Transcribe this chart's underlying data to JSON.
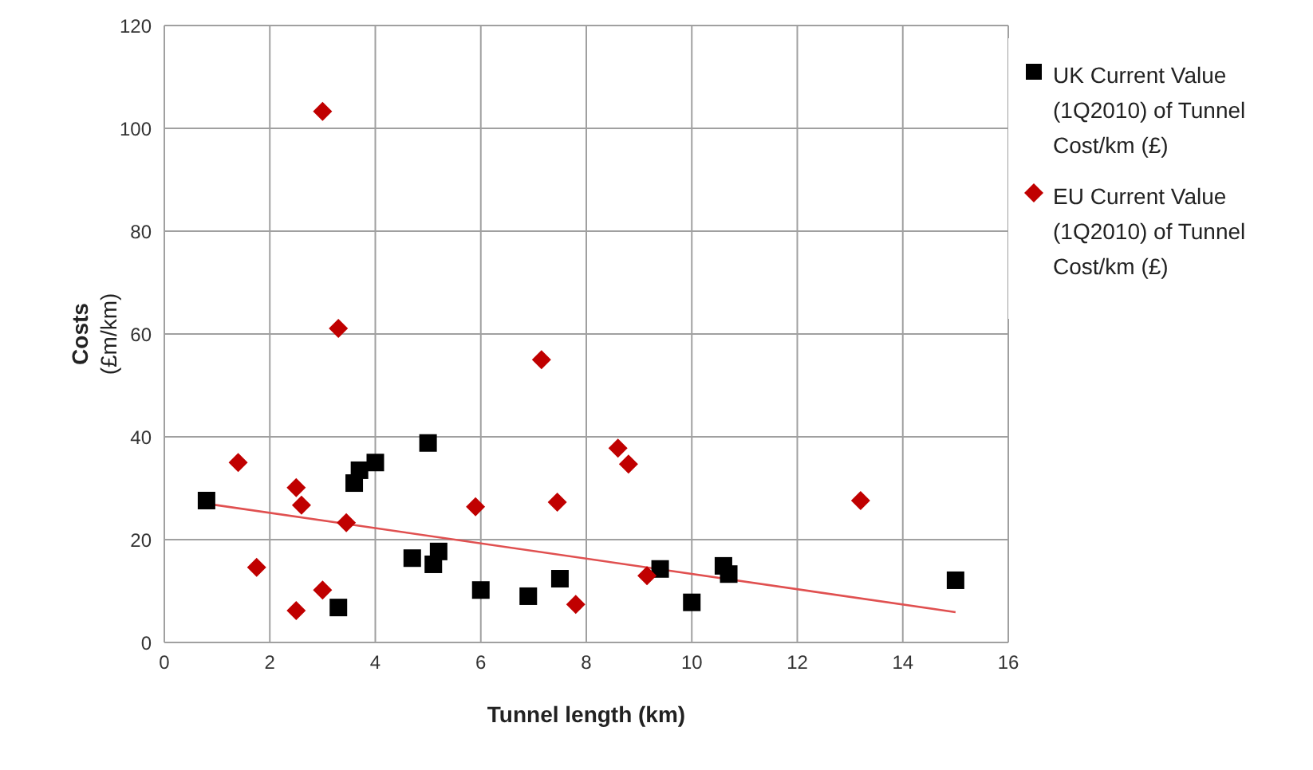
{
  "chart_data": {
    "type": "scatter",
    "xlabel": "Tunnel length (km)",
    "ylabel": "Costs (£m/km)",
    "xlim": [
      0,
      16
    ],
    "xticks": [
      0,
      2,
      4,
      6,
      8,
      10,
      12,
      14,
      16
    ],
    "ylim": [
      0,
      120
    ],
    "yticks": [
      0,
      20,
      40,
      60,
      80,
      100,
      120
    ],
    "grid": true,
    "legend": "top right",
    "series": [
      {
        "name": "UK Current Value (1Q2010) of Tunnel Cost/km (£)",
        "color": "#000000",
        "marker": "square",
        "x": [
          0.8,
          3.3,
          3.6,
          3.7,
          4.0,
          5.0,
          4.7,
          5.1,
          5.2,
          6.0,
          6.9,
          7.5,
          9.4,
          10.0,
          10.6,
          10.7,
          15.0
        ],
        "values": [
          27.6,
          6.8,
          31,
          33.5,
          35,
          38.8,
          16.4,
          15.2,
          17.7,
          10.2,
          9.0,
          12.4,
          14.3,
          7.8,
          14.9,
          13.3,
          12.1
        ]
      },
      {
        "name": "EU Current Value (1Q2010) of Tunnel Cost/km (£)",
        "color": "#c00000",
        "marker": "diamond",
        "x": [
          1.4,
          1.75,
          2.5,
          2.6,
          2.5,
          3.0,
          3.0,
          3.3,
          3.45,
          5.9,
          7.15,
          7.45,
          7.8,
          8.6,
          8.8,
          9.15,
          13.2
        ],
        "values": [
          35,
          14.6,
          30.1,
          26.7,
          6.2,
          10.2,
          103.3,
          61.1,
          23.3,
          26.4,
          55,
          27.3,
          7.4,
          37.8,
          34.7,
          13.0,
          27.6
        ]
      },
      {
        "type": "line",
        "color": "#e05050",
        "marker": "none",
        "x": [
          0.8,
          15
        ],
        "values": [
          27,
          5.9
        ]
      }
    ]
  }
}
